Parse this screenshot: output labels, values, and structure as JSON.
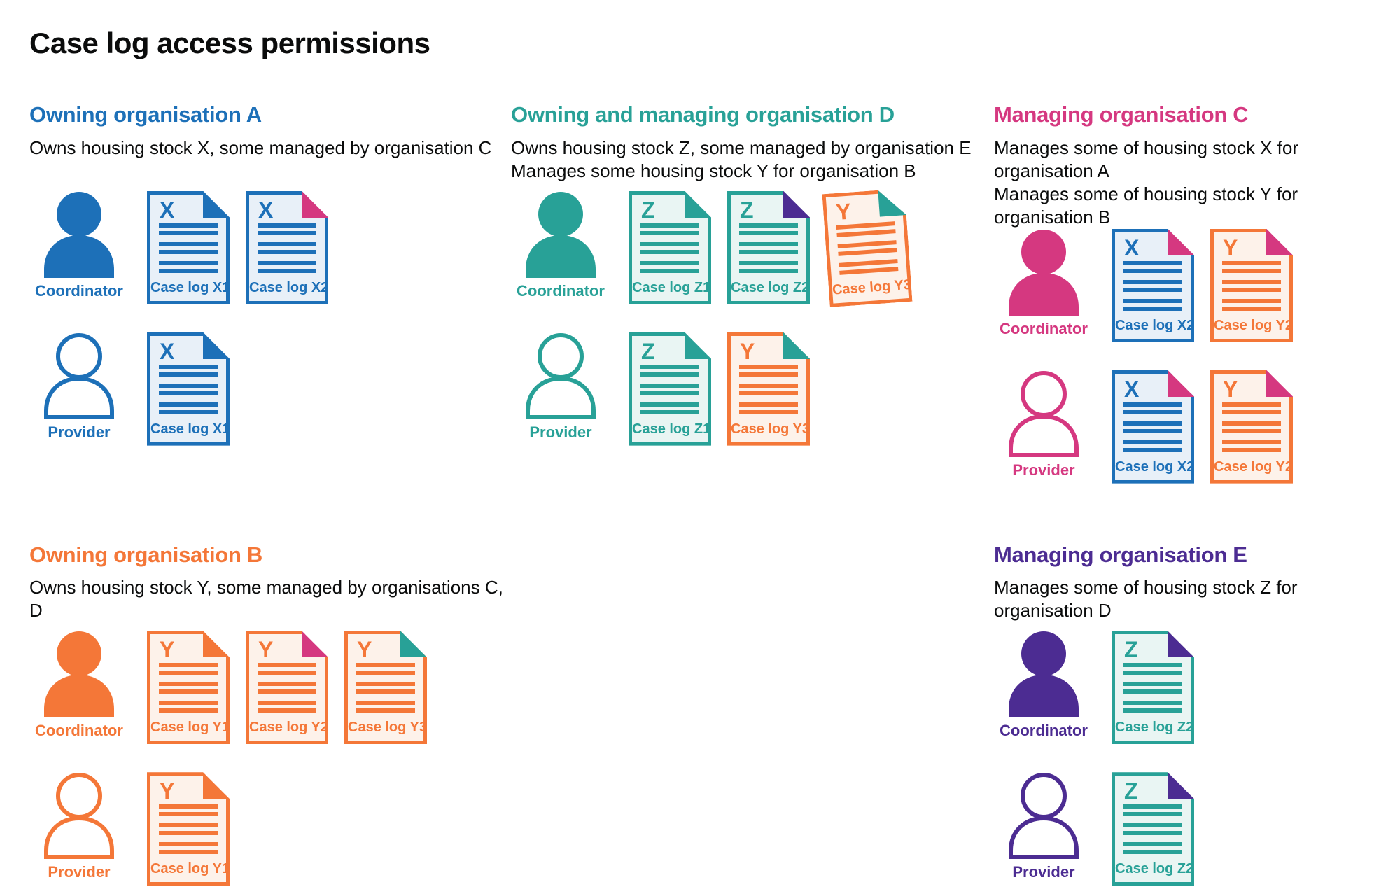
{
  "title": "Case log access permissions",
  "palette": {
    "blue": "#1d70b8",
    "teal": "#28a197",
    "pink": "#d53880",
    "orange": "#f47738",
    "purple": "#4c2c92",
    "text": "#0b0c0c"
  },
  "fills": {
    "blue": "#e8f0f8",
    "teal": "#e9f5f3",
    "orange": "#fdf2ea"
  },
  "sections": [
    {
      "id": "owning-org-a",
      "accent": "blue",
      "title": "Owning organisation A",
      "desc": [
        "Owns housing stock X, some managed by organisation C"
      ],
      "rows": [
        {
          "role": "Coordinator",
          "person": "filled",
          "docs": [
            {
              "letter": "X",
              "label": "Case log X1",
              "stock": "blue",
              "fold": "blue"
            },
            {
              "letter": "X",
              "label": "Case log X2",
              "stock": "blue",
              "fold": "pink"
            }
          ]
        },
        {
          "role": "Provider",
          "person": "outline",
          "docs": [
            {
              "letter": "X",
              "label": "Case log X1",
              "stock": "blue",
              "fold": "blue"
            }
          ]
        }
      ]
    },
    {
      "id": "owning-managing-org-d",
      "accent": "teal",
      "title": "Owning and managing organisation D",
      "desc": [
        "Owns housing stock Z, some managed by organisation E",
        "Manages some housing stock Y for organisation B"
      ],
      "rows": [
        {
          "role": "Coordinator",
          "person": "filled",
          "docs": [
            {
              "letter": "Z",
              "label": "Case log Z1",
              "stock": "teal",
              "fold": "teal"
            },
            {
              "letter": "Z",
              "label": "Case log Z2",
              "stock": "teal",
              "fold": "purple"
            },
            {
              "letter": "Y",
              "label": "Case log Y3",
              "stock": "orange",
              "fold": "teal",
              "tilt": -4
            }
          ]
        },
        {
          "role": "Provider",
          "person": "outline",
          "docs": [
            {
              "letter": "Z",
              "label": "Case log Z1",
              "stock": "teal",
              "fold": "teal"
            },
            {
              "letter": "Y",
              "label": "Case log Y3",
              "stock": "orange",
              "fold": "teal"
            }
          ]
        }
      ]
    },
    {
      "id": "managing-org-c",
      "accent": "pink",
      "title": "Managing organisation C",
      "desc": [
        "Manages some of housing stock X for organisation A",
        "Manages some of housing stock Y for organisation B"
      ],
      "rows": [
        {
          "role": "Coordinator",
          "person": "filled",
          "docs": [
            {
              "letter": "X",
              "label": "Case log X2",
              "stock": "blue",
              "fold": "pink"
            },
            {
              "letter": "Y",
              "label": "Case log Y2",
              "stock": "orange",
              "fold": "pink"
            }
          ]
        },
        {
          "role": "Provider",
          "person": "outline",
          "docs": [
            {
              "letter": "X",
              "label": "Case log X2",
              "stock": "blue",
              "fold": "pink"
            },
            {
              "letter": "Y",
              "label": "Case log Y2",
              "stock": "orange",
              "fold": "pink"
            }
          ]
        }
      ]
    },
    {
      "id": "owning-org-b",
      "accent": "orange",
      "title": "Owning organisation B",
      "desc": [
        "Owns housing stock Y, some managed by organisations C, D"
      ],
      "rows": [
        {
          "role": "Coordinator",
          "person": "filled",
          "docs": [
            {
              "letter": "Y",
              "label": "Case log Y1",
              "stock": "orange",
              "fold": "orange"
            },
            {
              "letter": "Y",
              "label": "Case log Y2",
              "stock": "orange",
              "fold": "pink"
            },
            {
              "letter": "Y",
              "label": "Case log Y3",
              "stock": "orange",
              "fold": "teal"
            }
          ]
        },
        {
          "role": "Provider",
          "person": "outline",
          "docs": [
            {
              "letter": "Y",
              "label": "Case log Y1",
              "stock": "orange",
              "fold": "orange"
            }
          ]
        }
      ]
    },
    {
      "id": "managing-org-e",
      "accent": "purple",
      "title": "Managing organisation E",
      "desc": [
        "Manages some of housing stock Z for organisation D"
      ],
      "rows": [
        {
          "role": "Coordinator",
          "person": "filled",
          "docs": [
            {
              "letter": "Z",
              "label": "Case log Z2",
              "stock": "teal",
              "fold": "purple"
            }
          ]
        },
        {
          "role": "Provider",
          "person": "outline",
          "docs": [
            {
              "letter": "Z",
              "label": "Case log Z2",
              "stock": "teal",
              "fold": "purple"
            }
          ]
        }
      ]
    }
  ]
}
